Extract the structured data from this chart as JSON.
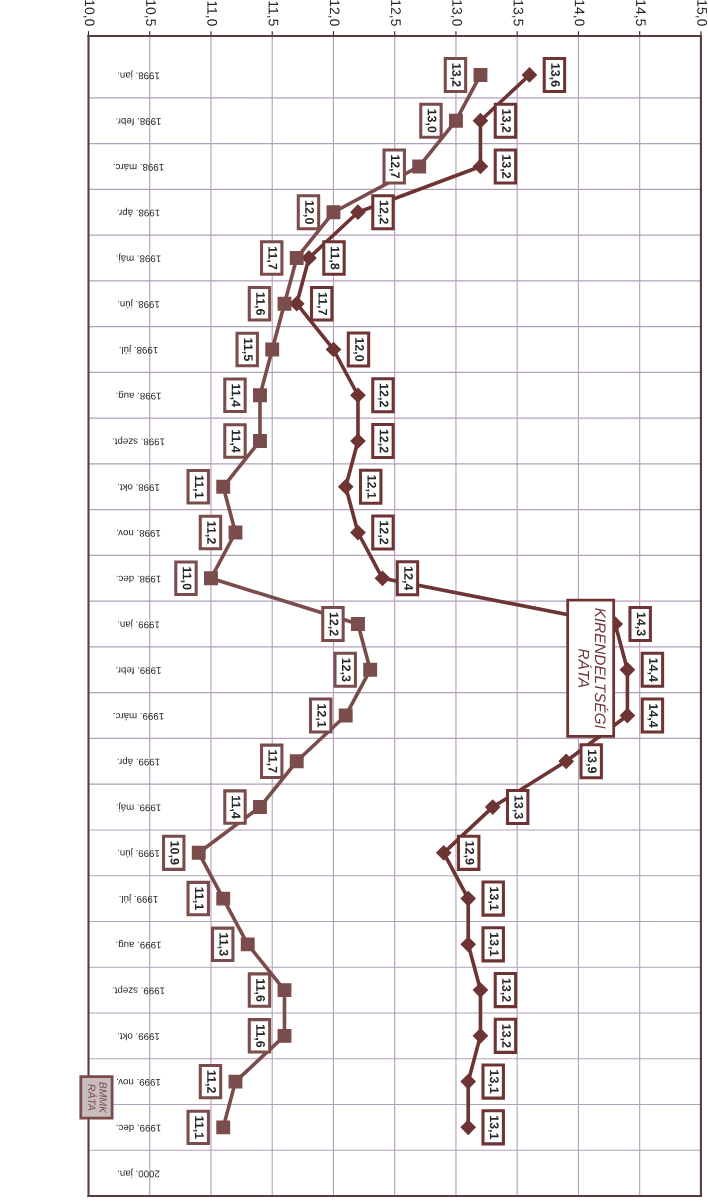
{
  "chart_data": {
    "type": "line",
    "orientation": "horizontal",
    "categories": [
      "1998. jan.",
      "1998. febr.",
      "1998. márc.",
      "1998. ápr.",
      "1998. máj.",
      "1998. jún.",
      "1998. júl.",
      "1998. aug.",
      "1998. szept.",
      "1998. okt.",
      "1998. nov.",
      "1998. dec.",
      "1999. jan.",
      "1999. febr.",
      "1999. márc.",
      "1999. ápr.",
      "1999. máj.",
      "1999. jún.",
      "1999. júl.",
      "1999. aug.",
      "1999. szept.",
      "1999. okt.",
      "1999. nov.",
      "1999. dec.",
      "2000. jan."
    ],
    "series": [
      {
        "name": "KIRENDELTSÉGI RÁTA",
        "color": "#6e3434",
        "marker": "diamond",
        "values": [
          13.6,
          13.2,
          13.2,
          12.2,
          11.8,
          11.7,
          12.0,
          12.2,
          12.2,
          12.1,
          12.2,
          12.4,
          14.3,
          14.4,
          14.4,
          13.9,
          13.3,
          12.9,
          13.1,
          13.1,
          13.2,
          13.2,
          13.1,
          13.1,
          null
        ],
        "value_labels": [
          "13,6",
          "13,2",
          "13,2",
          "12,2",
          "11,8",
          "11,7",
          "12,0",
          "12,2",
          "12,2",
          "12,1",
          "12,2",
          "12,4",
          "14,3",
          "14,4",
          "14,4",
          "13,9",
          "13,3",
          "12,9",
          "13,1",
          "13,1",
          "13,2",
          "13,2",
          "13,1",
          "13,1",
          null
        ]
      },
      {
        "name": "BMMK RÁTA",
        "color": "#7a4c4c",
        "marker": "square",
        "values": [
          13.2,
          13.0,
          12.7,
          12.0,
          11.7,
          11.6,
          11.5,
          11.4,
          11.4,
          11.1,
          11.2,
          11.0,
          12.2,
          12.3,
          12.1,
          11.7,
          11.4,
          10.9,
          11.1,
          11.3,
          11.6,
          11.6,
          11.2,
          11.1,
          null
        ],
        "value_labels": [
          "13,2",
          "13,0",
          "12,7",
          "12,0",
          "11,7",
          "11,6",
          "11,5",
          "11,4",
          "11,4",
          "11,1",
          "11,2",
          "11,0",
          "12,2",
          "12,3",
          "12,1",
          "11,7",
          "11,4",
          "10,9",
          "11,1",
          "11,3",
          "11,6",
          "11,6",
          "11,2",
          "11,1",
          null
        ]
      }
    ],
    "xlim": [
      10.0,
      15.0
    ],
    "xticks": [
      {
        "value": 10.0,
        "label": "10,0"
      },
      {
        "value": 10.5,
        "label": "10,5"
      },
      {
        "value": 11.0,
        "label": "11,0"
      },
      {
        "value": 11.5,
        "label": "11,5"
      },
      {
        "value": 12.0,
        "label": "12,0"
      },
      {
        "value": 12.5,
        "label": "12,5"
      },
      {
        "value": 13.0,
        "label": "13,0"
      },
      {
        "value": 13.5,
        "label": "13,5"
      },
      {
        "value": 14.0,
        "label": "14,0"
      },
      {
        "value": 14.5,
        "label": "14,5"
      },
      {
        "value": 15.0,
        "label": "15,0"
      }
    ],
    "grid": true,
    "line_style": "solid"
  }
}
